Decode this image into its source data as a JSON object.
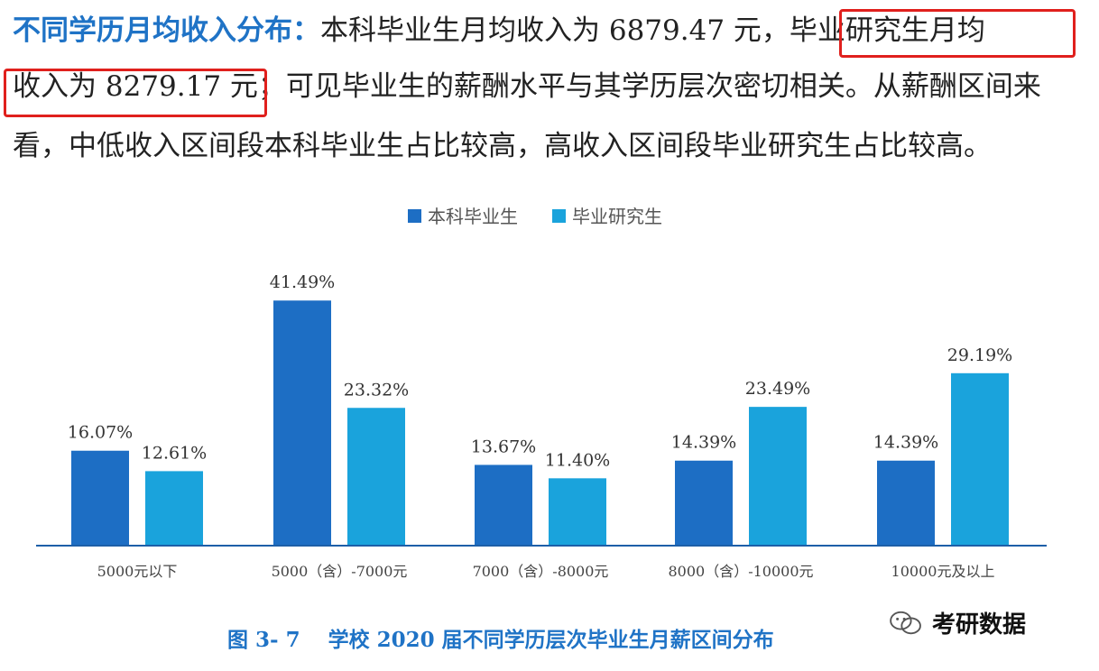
{
  "text": {
    "line1_lead": "不同学历月均收入分布：",
    "line1_a": "本科毕业生月均收入为 6879.47 元，",
    "line1_b": "毕业研究生月均",
    "line2_a": "收入为 8279.17 元；",
    "line2_b": "可见毕业生的薪酬水平与其学历层次密切相关。从薪酬区间来",
    "line3": "看，中低收入区间段本科毕业生占比较高，高收入区间段毕业研究生占比较高。"
  },
  "caption": "图 3- 7　 学校 2020 届不同学历层次毕业生月薪区间分布",
  "watermark": "考研数据",
  "watermark_icon": "wechat-icon",
  "colors": {
    "undergrad": "#1d6ec4",
    "graduate": "#1aa3dc",
    "highlight": "#e0201d",
    "lead": "#1f73c6"
  },
  "chart_data": {
    "type": "bar",
    "categories": [
      "5000元以下",
      "5000（含）-7000元",
      "7000（含）-8000元",
      "8000（含）-10000元",
      "10000元及以上"
    ],
    "series": [
      {
        "name": "本科毕业生",
        "values": [
          16.07,
          41.49,
          13.67,
          14.39,
          14.39
        ],
        "labels": [
          "16.07%",
          "41.49%",
          "13.67%",
          "14.39%",
          "14.39%"
        ]
      },
      {
        "name": "毕业研究生",
        "values": [
          12.61,
          23.32,
          11.4,
          23.49,
          29.19
        ],
        "labels": [
          "12.61%",
          "23.32%",
          "11.40%",
          "23.49%",
          "29.19%"
        ]
      }
    ],
    "legend_position": "top",
    "grid": false,
    "ylim": [
      0,
      45
    ],
    "title": "",
    "xlabel": "",
    "ylabel": ""
  }
}
